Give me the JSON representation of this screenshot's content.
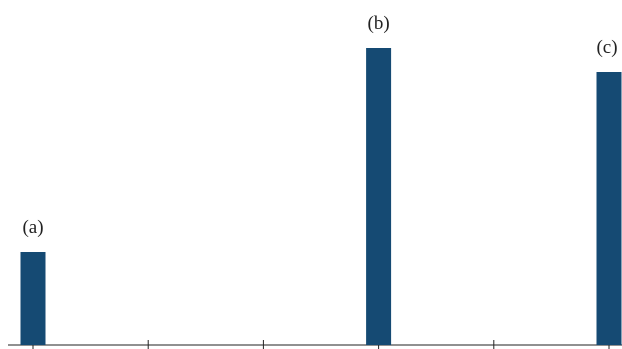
{
  "chart_data": {
    "type": "bar",
    "categories": [
      null,
      null,
      null,
      null,
      null,
      null
    ],
    "values": [
      0.31,
      null,
      null,
      0.99,
      null,
      0.91
    ],
    "annotations": [
      "(a)",
      null,
      null,
      "(b)",
      null,
      "(c)"
    ],
    "color": "#154a73",
    "ylim": [
      0,
      1
    ]
  }
}
